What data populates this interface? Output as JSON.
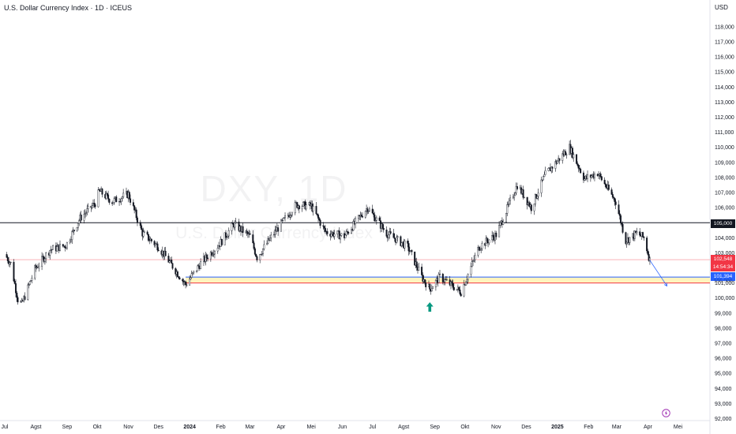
{
  "header": {
    "title": "U.S. Dollar Currency Index · 1D · ICEUS",
    "currency": "USD"
  },
  "watermark": {
    "symbol": "DXY, 1D",
    "name": "U.S. Dollar Currency Index"
  },
  "icons": {
    "arrow_up": "arrow-up-icon",
    "bolt": "lightning-icon"
  },
  "colors": {
    "bull": "#ffffff",
    "bear": "#131722",
    "resistance": "#131722",
    "current_price": "#f23645",
    "target": "#2962ff",
    "zone_fill": "#fff2b3",
    "zone_border": "#f23645",
    "marker": "#089981"
  },
  "price_tags": {
    "resistance": "105,000",
    "current_price": "102,548",
    "countdown": "14:54:34",
    "target": "101,394",
    "zone_bottom": "101,000"
  },
  "chart_data": {
    "type": "candlestick",
    "title": "U.S. Dollar Currency Index · 1D · ICEUS",
    "ylabel": "USD",
    "ylim": [
      92,
      118.5
    ],
    "y_ticks": [
      "92,000",
      "93,000",
      "94,000",
      "95,000",
      "96,000",
      "97,000",
      "98,000",
      "99,000",
      "100,000",
      "101,000",
      "102,000",
      "103,000",
      "104,000",
      "105,000",
      "106,000",
      "107,000",
      "108,000",
      "109,000",
      "110,000",
      "111,000",
      "112,000",
      "113,000",
      "114,000",
      "115,000",
      "116,000",
      "117,000",
      "118,000"
    ],
    "x_ticks": [
      "Jul",
      "Agst",
      "Sep",
      "Okt",
      "Nov",
      "Des",
      "2024",
      "Feb",
      "Mar",
      "Apr",
      "Mei",
      "Jun",
      "Jul",
      "Agst",
      "Sep",
      "Okt",
      "Nov",
      "Des",
      "2025",
      "Feb",
      "Mar",
      "Apr",
      "Mei"
    ],
    "close_path": [
      [
        "2023-07-01",
        102.9
      ],
      [
        "2023-07-07",
        102.3
      ],
      [
        "2023-07-14",
        99.9
      ],
      [
        "2023-07-18",
        99.6
      ],
      [
        "2023-07-31",
        101.9
      ],
      [
        "2023-08-15",
        103.2
      ],
      [
        "2023-08-31",
        103.5
      ],
      [
        "2023-09-14",
        105.3
      ],
      [
        "2023-09-29",
        106.3
      ],
      [
        "2023-10-03",
        107.1
      ],
      [
        "2023-10-16",
        106.4
      ],
      [
        "2023-11-01",
        106.9
      ],
      [
        "2023-11-15",
        104.3
      ],
      [
        "2023-12-01",
        103.4
      ],
      [
        "2023-12-14",
        102.2
      ],
      [
        "2023-12-28",
        100.9
      ],
      [
        "2024-01-12",
        102.3
      ],
      [
        "2024-01-31",
        103.6
      ],
      [
        "2024-02-14",
        104.9
      ],
      [
        "2024-03-01",
        104.1
      ],
      [
        "2024-03-08",
        102.7
      ],
      [
        "2024-03-25",
        104.3
      ],
      [
        "2024-04-16",
        106.2
      ],
      [
        "2024-05-01",
        106.1
      ],
      [
        "2024-05-15",
        104.4
      ],
      [
        "2024-06-03",
        104.1
      ],
      [
        "2024-06-26",
        106.0
      ],
      [
        "2024-07-15",
        104.3
      ],
      [
        "2024-08-05",
        103.4
      ],
      [
        "2024-08-19",
        101.4
      ],
      [
        "2024-08-27",
        100.6
      ],
      [
        "2024-09-06",
        101.4
      ],
      [
        "2024-09-27",
        100.4
      ],
      [
        "2024-10-15",
        103.4
      ],
      [
        "2024-11-01",
        104.2
      ],
      [
        "2024-11-22",
        107.5
      ],
      [
        "2024-12-06",
        106.0
      ],
      [
        "2024-12-20",
        108.2
      ],
      [
        "2025-01-13",
        110.0
      ],
      [
        "2025-01-28",
        107.9
      ],
      [
        "2025-02-10",
        108.3
      ],
      [
        "2025-02-28",
        106.4
      ],
      [
        "2025-03-10",
        103.8
      ],
      [
        "2025-03-21",
        104.3
      ],
      [
        "2025-03-28",
        104.0
      ],
      [
        "2025-04-03",
        102.5
      ]
    ],
    "levels": {
      "resistance": 105.0,
      "current_price": 102.548,
      "target": 101.394,
      "demand_zone": [
        101.0,
        101.394
      ]
    },
    "annotations": [
      {
        "type": "arrow-up",
        "date": "2024-08-27",
        "price": 100.4
      },
      {
        "type": "projection-arrow",
        "from": [
          "2025-04-03",
          102.5
        ],
        "to": [
          "2025-04-20",
          100.8
        ]
      }
    ],
    "grid": false,
    "legend": "none"
  }
}
